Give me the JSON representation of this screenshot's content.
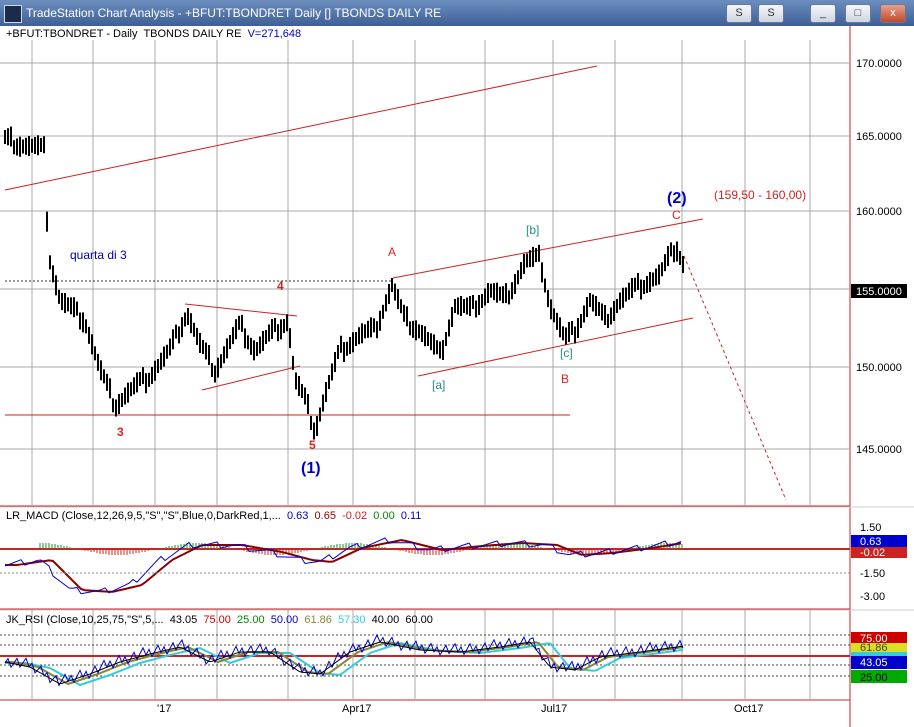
{
  "window": {
    "title": "TradeStation Chart Analysis - +BFUT:TBONDRET Daily [] TBONDS DAILY RE",
    "buttons": [
      "S",
      "S",
      "_",
      "□",
      "x"
    ]
  },
  "chart_header": {
    "symbol": "+BFUT:TBONDRET - Daily",
    "name": "TBONDS DAILY RE",
    "volume": "V=271,648"
  },
  "price_axis": {
    "ticks": [
      "170.0000",
      "165.0000",
      "160.0000",
      "155.0000",
      "150.0000",
      "145.0000"
    ],
    "last_price": "155.0000"
  },
  "annotations": {
    "quarta": "quarta di 3",
    "wave_3": "3",
    "wave_4": "4",
    "wave_5": "5",
    "wave_1": "(1)",
    "wave_2": "(2)",
    "wave_A": "A",
    "wave_B": "B",
    "wave_C": "C",
    "sub_a": "[a]",
    "sub_b": "[b]",
    "sub_c": "[c]",
    "target": "(159,50 - 160,00)"
  },
  "macd": {
    "label": "LR_MACD (Close,12,26,9,5,\"S\",\"S\",Blue,0,DarkRed,1,...",
    "v1": "0.63",
    "v2": "0.65",
    "v3": "-0.02",
    "v4": "0.00",
    "v5": "0.11",
    "ticks": [
      "1.50",
      "-1.50",
      "-3.00"
    ],
    "marker_blue": "0.63",
    "marker_red": "-0.02"
  },
  "rsi": {
    "label": "JK_RSI (Close,10,25,75,\"S\",5,...",
    "v1": "43.05",
    "v2": "75.00",
    "v3": "25.00",
    "v4": "50.00",
    "v5": "61.86",
    "v6": "57.30",
    "v7": "40.00",
    "v8": "60.00",
    "marker_red": "75.00",
    "marker_yellow": "61.86",
    "marker_cyan": "50.00",
    "marker_blue": "43.05",
    "marker_green": "25.00"
  },
  "time_axis": [
    "'17",
    "Apr17",
    "Jul17",
    "Oct17"
  ],
  "colors": {
    "title_bar": "#3d5f96",
    "price_bars": "#000000",
    "trendlines": "#cc2222",
    "wave_labels": "#dd2222",
    "sub_wave_labels": "#2a8a8a",
    "degree_labels": "#0000cc",
    "macd_line": "#0000cc",
    "macd_signal": "#8b0000",
    "rsi_line": "#0000cc"
  }
}
